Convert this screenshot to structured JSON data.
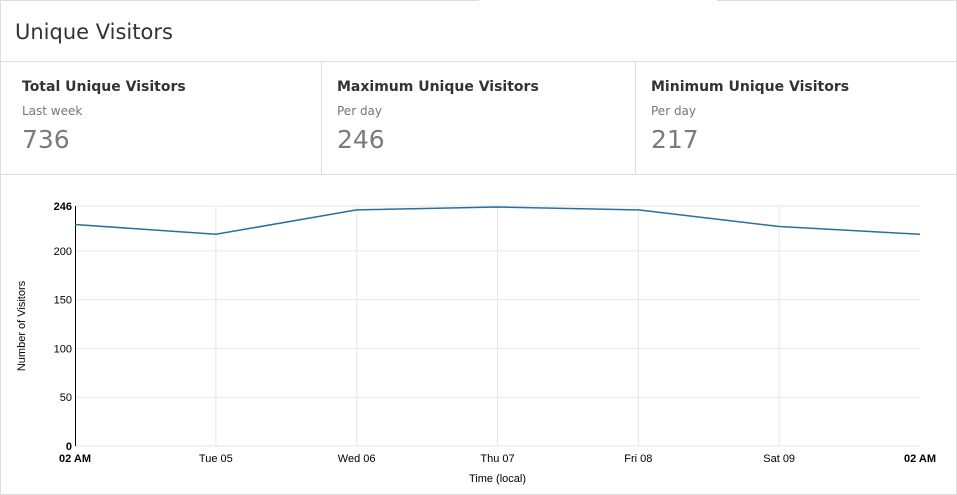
{
  "page": {
    "title": "Unique Visitors"
  },
  "stats": [
    {
      "title": "Total Unique Visitors",
      "subtitle": "Last week",
      "value": "736"
    },
    {
      "title": "Maximum Unique Visitors",
      "subtitle": "Per day",
      "value": "246"
    },
    {
      "title": "Minimum Unique Visitors",
      "subtitle": "Per day",
      "value": "217"
    }
  ],
  "chart_data": {
    "type": "line",
    "xlabel": "Time (local)",
    "ylabel": "Number of Visitors",
    "x_ticks": [
      {
        "label": "02 AM",
        "bold": true
      },
      {
        "label": "Tue 05",
        "bold": false
      },
      {
        "label": "Wed 06",
        "bold": false
      },
      {
        "label": "Thu 07",
        "bold": false
      },
      {
        "label": "Fri 08",
        "bold": false
      },
      {
        "label": "Sat 09",
        "bold": false
      },
      {
        "label": "02 AM",
        "bold": true
      }
    ],
    "y_ticks": [
      {
        "value": 0,
        "label": "0",
        "bold": true
      },
      {
        "value": 50,
        "label": "50",
        "bold": false
      },
      {
        "value": 100,
        "label": "100",
        "bold": false
      },
      {
        "value": 150,
        "label": "150",
        "bold": false
      },
      {
        "value": 200,
        "label": "200",
        "bold": false
      },
      {
        "value": 246,
        "label": "246",
        "bold": true
      }
    ],
    "ylim": [
      0,
      246
    ],
    "series": [
      {
        "values": [
          227,
          217,
          242,
          245,
          242,
          225,
          217
        ]
      }
    ],
    "line_color": "#2a6fa0",
    "grid": true,
    "grid_color": "#e6e6e6"
  }
}
